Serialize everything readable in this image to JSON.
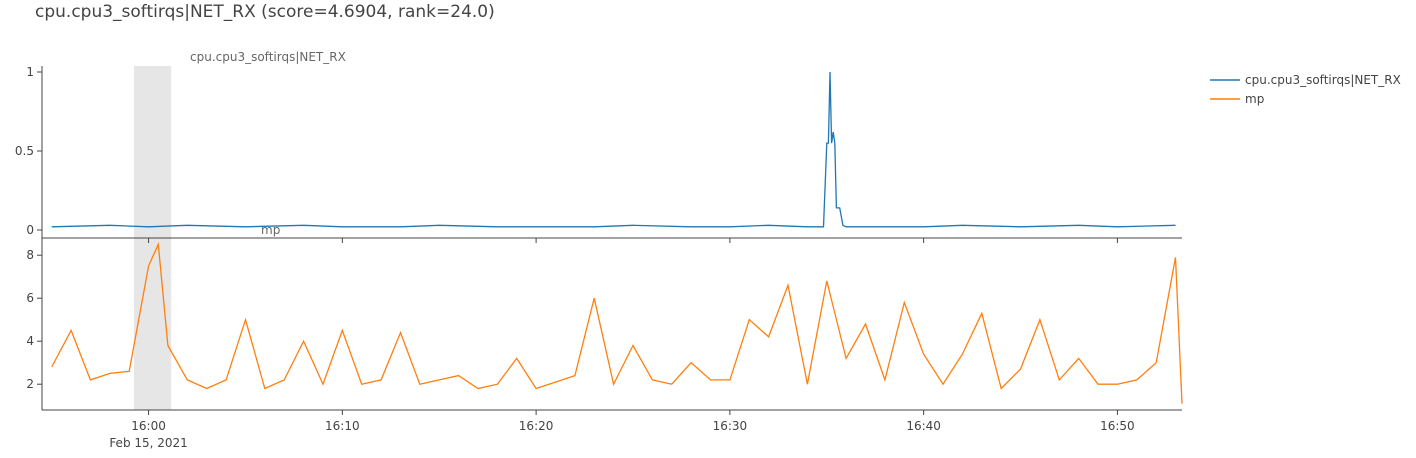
{
  "title": "cpu.cpu3_softirqs|NET_RX (score=4.6904, rank=24.0)",
  "chart_data": [
    {
      "type": "line",
      "subplot_title": "cpu.cpu3_softirqs|NET_RX",
      "series": [
        {
          "name": "cpu.cpu3_softirqs|NET_RX",
          "color": "#1f77b4"
        }
      ],
      "x_range": [
        "2021-02-15 15:54:30",
        "2021-02-15 16:53:20"
      ],
      "ylim": [
        0,
        1
      ],
      "yticks": [
        "0",
        "0.5",
        "1"
      ],
      "x": [
        "15:55",
        "15:58",
        "16:00",
        "16:02",
        "16:05",
        "16:08",
        "16:10",
        "16:13",
        "16:15",
        "16:18",
        "16:20",
        "16:23",
        "16:25",
        "16:28",
        "16:30",
        "16:32",
        "16:34",
        "16:34:50",
        "16:35:00",
        "16:35:05",
        "16:35:10",
        "16:35:15",
        "16:35:20",
        "16:35:25",
        "16:35:30",
        "16:35:40",
        "16:35:50",
        "16:36:00",
        "16:38",
        "16:40",
        "16:42",
        "16:45",
        "16:48",
        "16:50",
        "16:53"
      ],
      "y": [
        0.02,
        0.03,
        0.02,
        0.03,
        0.02,
        0.03,
        0.02,
        0.02,
        0.03,
        0.02,
        0.02,
        0.02,
        0.03,
        0.02,
        0.02,
        0.03,
        0.02,
        0.02,
        0.55,
        0.55,
        1.0,
        0.55,
        0.62,
        0.55,
        0.14,
        0.14,
        0.03,
        0.02,
        0.02,
        0.02,
        0.03,
        0.02,
        0.03,
        0.02,
        0.03
      ],
      "shaded_region": [
        "15:59:15",
        "16:01:10"
      ]
    },
    {
      "type": "line",
      "subplot_title": "mp",
      "series": [
        {
          "name": "mp",
          "color": "#ff7f0e"
        }
      ],
      "ylim": [
        0.8,
        8.8
      ],
      "yticks": [
        "2",
        "4",
        "6",
        "8"
      ],
      "xticks": [
        "16:00",
        "16:10",
        "16:20",
        "16:30",
        "16:40",
        "16:50"
      ],
      "x_date_label": "Feb 15, 2021",
      "x": [
        "15:55",
        "15:56",
        "15:57",
        "15:58",
        "15:59",
        "16:00",
        "16:00:30",
        "16:01",
        "16:02",
        "16:03",
        "16:04",
        "16:05",
        "16:06",
        "16:07",
        "16:08",
        "16:09",
        "16:10",
        "16:11",
        "16:12",
        "16:13",
        "16:14",
        "16:15",
        "16:16",
        "16:17",
        "16:18",
        "16:19",
        "16:20",
        "16:21",
        "16:22",
        "16:23",
        "16:24",
        "16:25",
        "16:26",
        "16:27",
        "16:28",
        "16:29",
        "16:30",
        "16:31",
        "16:32",
        "16:33",
        "16:34",
        "16:35",
        "16:36",
        "16:37",
        "16:38",
        "16:39",
        "16:40",
        "16:41",
        "16:42",
        "16:43",
        "16:44",
        "16:45",
        "16:46",
        "16:47",
        "16:48",
        "16:49",
        "16:50",
        "16:51",
        "16:52",
        "16:53",
        "16:53:20"
      ],
      "y": [
        2.8,
        4.5,
        2.2,
        2.5,
        2.6,
        7.5,
        8.5,
        3.8,
        2.2,
        1.8,
        2.2,
        5.0,
        1.8,
        2.2,
        4.0,
        2.0,
        4.5,
        2.0,
        2.2,
        4.4,
        2.0,
        2.2,
        2.4,
        1.8,
        2.0,
        3.2,
        1.8,
        2.1,
        2.4,
        6.0,
        2.0,
        3.8,
        2.2,
        2.0,
        3.0,
        2.2,
        2.2,
        5.0,
        4.2,
        6.6,
        2.0,
        6.8,
        3.2,
        4.8,
        2.2,
        5.8,
        3.4,
        2.0,
        3.4,
        5.3,
        1.8,
        2.7,
        5.0,
        2.2,
        3.2,
        2.0,
        2.0,
        2.2,
        3.0,
        7.9,
        1.1
      ]
    }
  ],
  "legend": [
    {
      "name": "cpu.cpu3_softirqs|NET_RX",
      "color": "#1f77b4"
    },
    {
      "name": "mp",
      "color": "#ff7f0e"
    }
  ]
}
